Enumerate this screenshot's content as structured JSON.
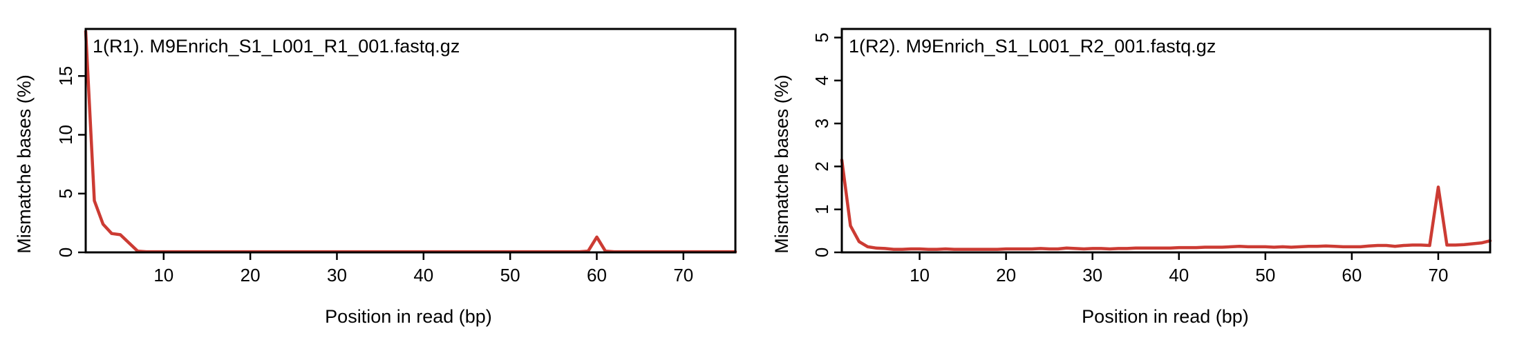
{
  "colors": {
    "line": "#cc3b33",
    "frame": "#000000",
    "zero_line": "#b4b4b4"
  },
  "chart_data": [
    {
      "type": "line",
      "title": "1(R1). M9Enrich_S1_L001_R1_001.fastq.gz",
      "xlabel": "Position in read (bp)",
      "ylabel": "Mismatche bases (%)",
      "xlim": [
        1,
        76
      ],
      "ylim": [
        0,
        19
      ],
      "xticks": [
        10,
        20,
        30,
        40,
        50,
        60,
        70
      ],
      "yticks": [
        0,
        5,
        10,
        15
      ],
      "xtick_labels": [
        "10",
        "20",
        "30",
        "40",
        "50",
        "60",
        "70"
      ],
      "ytick_labels": [
        "0",
        "5",
        "10",
        "15"
      ],
      "zero_reference_line": true,
      "series": [
        {
          "x": [
            1,
            2,
            3,
            4,
            5,
            6,
            7,
            8,
            9,
            10,
            11,
            12,
            13,
            14,
            15,
            16,
            17,
            18,
            19,
            20,
            21,
            22,
            23,
            24,
            25,
            26,
            27,
            28,
            29,
            30,
            31,
            32,
            33,
            34,
            35,
            36,
            37,
            38,
            39,
            40,
            41,
            42,
            43,
            44,
            45,
            46,
            47,
            48,
            49,
            50,
            51,
            52,
            53,
            54,
            55,
            56,
            57,
            58,
            59,
            60,
            61,
            62,
            63,
            64,
            65,
            66,
            67,
            68,
            69,
            70,
            71,
            72,
            73,
            74,
            75,
            76
          ],
          "y": [
            18.8,
            4.4,
            2.4,
            1.6,
            1.5,
            0.8,
            0.1,
            0.05,
            0.05,
            0.05,
            0.05,
            0.05,
            0.05,
            0.05,
            0.05,
            0.05,
            0.05,
            0.05,
            0.05,
            0.05,
            0.05,
            0.05,
            0.05,
            0.05,
            0.05,
            0.05,
            0.05,
            0.05,
            0.05,
            0.05,
            0.05,
            0.05,
            0.05,
            0.05,
            0.05,
            0.05,
            0.05,
            0.05,
            0.05,
            0.05,
            0.05,
            0.05,
            0.05,
            0.05,
            0.05,
            0.05,
            0.05,
            0.05,
            0.05,
            0.05,
            0.05,
            0.05,
            0.05,
            0.05,
            0.05,
            0.05,
            0.05,
            0.05,
            0.1,
            1.3,
            0.1,
            0.05,
            0.05,
            0.05,
            0.05,
            0.05,
            0.05,
            0.05,
            0.05,
            0.05,
            0.05,
            0.05,
            0.05,
            0.05,
            0.05,
            0.05
          ]
        }
      ]
    },
    {
      "type": "line",
      "title": "1(R2). M9Enrich_S1_L001_R2_001.fastq.gz",
      "xlabel": "Position in read (bp)",
      "ylabel": "Mismatche bases (%)",
      "xlim": [
        1,
        76
      ],
      "ylim": [
        0,
        5.2
      ],
      "xticks": [
        10,
        20,
        30,
        40,
        50,
        60,
        70
      ],
      "yticks": [
        0,
        1,
        2,
        3,
        4,
        5
      ],
      "xtick_labels": [
        "10",
        "20",
        "30",
        "40",
        "50",
        "60",
        "70"
      ],
      "ytick_labels": [
        "0",
        "1",
        "2",
        "3",
        "4",
        "5"
      ],
      "zero_reference_line": true,
      "series": [
        {
          "x": [
            1,
            2,
            3,
            4,
            5,
            6,
            7,
            8,
            9,
            10,
            11,
            12,
            13,
            14,
            15,
            16,
            17,
            18,
            19,
            20,
            21,
            22,
            23,
            24,
            25,
            26,
            27,
            28,
            29,
            30,
            31,
            32,
            33,
            34,
            35,
            36,
            37,
            38,
            39,
            40,
            41,
            42,
            43,
            44,
            45,
            46,
            47,
            48,
            49,
            50,
            51,
            52,
            53,
            54,
            55,
            56,
            57,
            58,
            59,
            60,
            61,
            62,
            63,
            64,
            65,
            66,
            67,
            68,
            69,
            70,
            71,
            72,
            73,
            74,
            75,
            76
          ],
          "y": [
            2.15,
            0.62,
            0.25,
            0.13,
            0.1,
            0.09,
            0.07,
            0.07,
            0.08,
            0.08,
            0.07,
            0.07,
            0.08,
            0.07,
            0.07,
            0.07,
            0.07,
            0.07,
            0.07,
            0.08,
            0.08,
            0.08,
            0.08,
            0.09,
            0.08,
            0.08,
            0.1,
            0.09,
            0.08,
            0.09,
            0.09,
            0.08,
            0.09,
            0.09,
            0.1,
            0.1,
            0.1,
            0.1,
            0.1,
            0.11,
            0.11,
            0.11,
            0.12,
            0.12,
            0.12,
            0.13,
            0.14,
            0.13,
            0.13,
            0.13,
            0.12,
            0.13,
            0.12,
            0.13,
            0.14,
            0.14,
            0.15,
            0.14,
            0.13,
            0.13,
            0.13,
            0.15,
            0.16,
            0.16,
            0.14,
            0.16,
            0.17,
            0.17,
            0.16,
            1.52,
            0.17,
            0.17,
            0.18,
            0.2,
            0.22,
            0.27
          ]
        }
      ]
    }
  ]
}
